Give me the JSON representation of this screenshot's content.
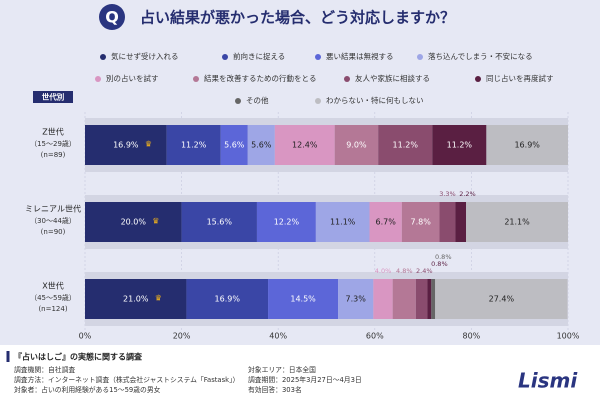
{
  "header": {
    "badge": "Q",
    "title": "占い結果が悪かった場合、どう対応しますか？"
  },
  "chart_data": {
    "type": "stacked-bar",
    "orientation": "horizontal",
    "group_label": "世代別",
    "categories": [
      "Z世代",
      "ミレニアル世代",
      "X世代"
    ],
    "category_ages": [
      "（15〜29歳）",
      "（30〜44歳）",
      "（45〜59歳）"
    ],
    "category_n": [
      "(n=89)",
      "(n=90)",
      "(n=124)"
    ],
    "series": [
      {
        "name": "気にせず受け入れる",
        "color": "#252d6f",
        "values": [
          16.9,
          20.0,
          21.0
        ],
        "value_labels": [
          "16.9%",
          "20.0%",
          "21.0%"
        ]
      },
      {
        "name": "前向きに捉える",
        "color": "#3a46a6",
        "values": [
          11.2,
          15.6,
          16.9
        ],
        "value_labels": [
          "11.2%",
          "15.6%",
          "16.9%"
        ]
      },
      {
        "name": "悪い結果は無視する",
        "color": "#5c66d8",
        "values": [
          5.6,
          12.2,
          14.5
        ],
        "value_labels": [
          "5.6%",
          "12.2%",
          "14.5%"
        ]
      },
      {
        "name": "落ち込んでしまう・不安になる",
        "color": "#9ea6e6",
        "values": [
          5.6,
          11.1,
          7.3
        ],
        "value_labels": [
          "5.6%",
          "11.1%",
          "7.3%"
        ]
      },
      {
        "name": "別の占いを試す",
        "color": "#d996c2",
        "values": [
          12.4,
          6.7,
          4.0
        ],
        "value_labels": [
          "12.4%",
          "6.7%",
          "4.0%"
        ]
      },
      {
        "name": "結果を改善するための行動をとる",
        "color": "#b47896",
        "values": [
          9.0,
          7.8,
          4.8
        ],
        "value_labels": [
          "9.0%",
          "7.8%",
          "4.8%"
        ]
      },
      {
        "name": "友人や家族に相談する",
        "color": "#8a4c6e",
        "values": [
          11.2,
          3.3,
          2.4
        ],
        "value_labels": [
          "11.2%",
          "3.3%",
          "2.4%"
        ]
      },
      {
        "name": "同じ占いを再度試す",
        "color": "#5a1f42",
        "values": [
          11.2,
          2.2,
          0.8
        ],
        "value_labels": [
          "11.2%",
          "2.2%",
          "0.8%"
        ]
      },
      {
        "name": "その他",
        "color": "#666666",
        "values": [
          0,
          0,
          0.8
        ],
        "value_labels": [
          null,
          null,
          "0.8%"
        ]
      },
      {
        "name": "わからない・特に何もしない",
        "color": "#bdbdc2",
        "values": [
          16.9,
          21.1,
          27.4
        ],
        "value_labels": [
          "16.9%",
          "21.1%",
          "27.4%"
        ]
      }
    ],
    "xlim": [
      0,
      100
    ],
    "xticks": [
      {
        "value": 0,
        "label": "0%"
      },
      {
        "value": 20,
        "label": "20%"
      },
      {
        "value": 40,
        "label": "40%"
      },
      {
        "value": 60,
        "label": "60%"
      },
      {
        "value": 80,
        "label": "80%"
      },
      {
        "value": 100,
        "label": "100%"
      }
    ],
    "grid": true
  },
  "footer": {
    "survey_title": "『占いはしご』の実態に関する調査",
    "rows": [
      [
        "調査機関：自社調査",
        "対象エリア：日本全国"
      ],
      [
        "調査方法：インターネット調査（株式会社ジャストシステム「Fastask」）",
        "調査期間：2025年3月27日〜4月3日"
      ],
      [
        "対象者：占いの利用経験がある15〜59歳の男女",
        "有効回答：303名"
      ]
    ],
    "logo": "Lismi"
  }
}
